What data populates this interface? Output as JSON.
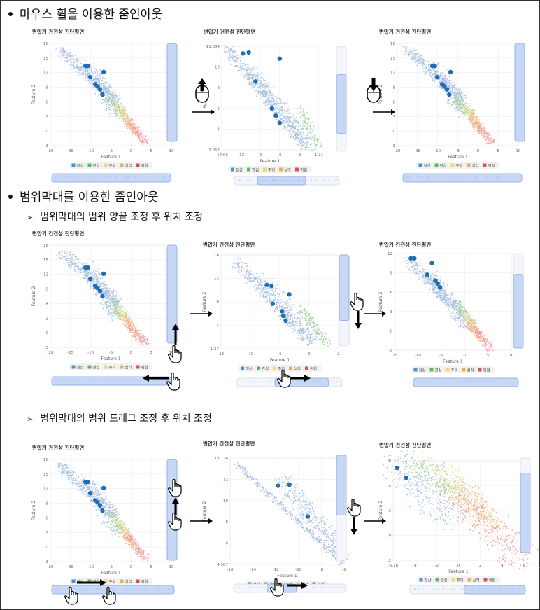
{
  "sections": [
    {
      "title": "마우스 휠을 이용한 줌인아웃"
    },
    {
      "title": "범위막대를 이용한 줌인아웃",
      "subsections": [
        {
          "title": "범위막대의 범위 양끝 조정 후 위치 조정"
        },
        {
          "title": "범위막대의 범위 드래그 조정 후 위치 조정"
        }
      ]
    }
  ],
  "chart_common": {
    "title": "변압기 건전성 진단평면",
    "xlabel": "Feature 1",
    "ylabel": "Feature 2",
    "legend": [
      {
        "label": "정상",
        "color": "#4a90d9"
      },
      {
        "label": "관심",
        "color": "#5cb85c"
      },
      {
        "label": "주의",
        "color": "#f5d76e"
      },
      {
        "label": "심각",
        "color": "#f0ad4e"
      },
      {
        "label": "위험",
        "color": "#d9534f"
      }
    ]
  },
  "chart_data": [
    {
      "type": "scatter",
      "xticks": [
        "-20",
        "-15",
        "-10",
        "-5",
        "0",
        "5",
        "10"
      ],
      "yticks": [
        "18",
        "15",
        "12",
        "9",
        "6",
        "3",
        "0",
        "-3"
      ],
      "xlim": [
        -20,
        10
      ],
      "ylim": [
        -3,
        18
      ]
    },
    {
      "type": "scatter",
      "xticks": [
        "-14.06",
        "-12",
        "-9",
        "-6",
        "-3",
        "-1.21"
      ],
      "yticks": [
        "11.084",
        "10",
        "8",
        "6",
        "4",
        "2.052"
      ],
      "xlim": [
        -14.06,
        -1.21
      ],
      "ylim": [
        2.052,
        11.084
      ]
    },
    {
      "type": "scatter",
      "xticks": [
        "-20",
        "-15",
        "-10",
        "-5",
        "0",
        "5",
        "10"
      ],
      "yticks": [
        "18",
        "15",
        "12",
        "9",
        "6",
        "3",
        "0",
        "-3"
      ],
      "xlim": [
        -20,
        10
      ],
      "ylim": [
        -3,
        18
      ]
    },
    {
      "type": "scatter",
      "xticks": [
        "-20",
        "-15",
        "-10",
        "-5",
        "0",
        "5",
        "10"
      ],
      "yticks": [
        "18",
        "15",
        "12",
        "9",
        "6",
        "3",
        "0",
        "-3"
      ],
      "xlim": [
        -20,
        10
      ],
      "ylim": [
        -3,
        18
      ]
    },
    {
      "type": "scatter",
      "xticks": [
        "-15",
        "-10",
        "-5",
        "0",
        "2"
      ],
      "yticks": [
        "16",
        "12",
        "8",
        "4",
        "1.37"
      ],
      "xlim": [
        -17,
        2
      ],
      "ylim": [
        1.37,
        16
      ]
    },
    {
      "type": "scatter",
      "xticks": [
        "-15",
        "-10",
        "-5",
        "0",
        "5",
        "10"
      ],
      "yticks": [
        "12",
        "9",
        "6",
        "3",
        "0",
        "-3"
      ],
      "xlim": [
        -17,
        10
      ],
      "ylim": [
        -3,
        12
      ]
    },
    {
      "type": "scatter",
      "xticks": [
        "-20",
        "-15",
        "-10",
        "-5",
        "0",
        "5",
        "10"
      ],
      "yticks": [
        "18",
        "15",
        "12",
        "9",
        "6",
        "3",
        "0",
        "-3"
      ],
      "xlim": [
        -20,
        10
      ],
      "ylim": [
        -3,
        18
      ]
    },
    {
      "type": "scatter",
      "xticks": [
        "-16",
        "-14",
        "-12",
        "-10",
        "-8",
        "-6"
      ],
      "yticks": [
        "13.726",
        "12",
        "10",
        "8",
        "6",
        "4.587"
      ],
      "xlim": [
        -16,
        -5
      ],
      "ylim": [
        4.587,
        13.726
      ]
    },
    {
      "type": "scatter",
      "xticks": [
        "-5.16",
        "-4",
        "-2",
        "0",
        "2",
        "4",
        "6"
      ],
      "yticks": [
        "6",
        "4",
        "2",
        "0",
        "-2"
      ],
      "xlim": [
        -5.16,
        6
      ],
      "ylim": [
        -2.5,
        6.5
      ]
    }
  ]
}
